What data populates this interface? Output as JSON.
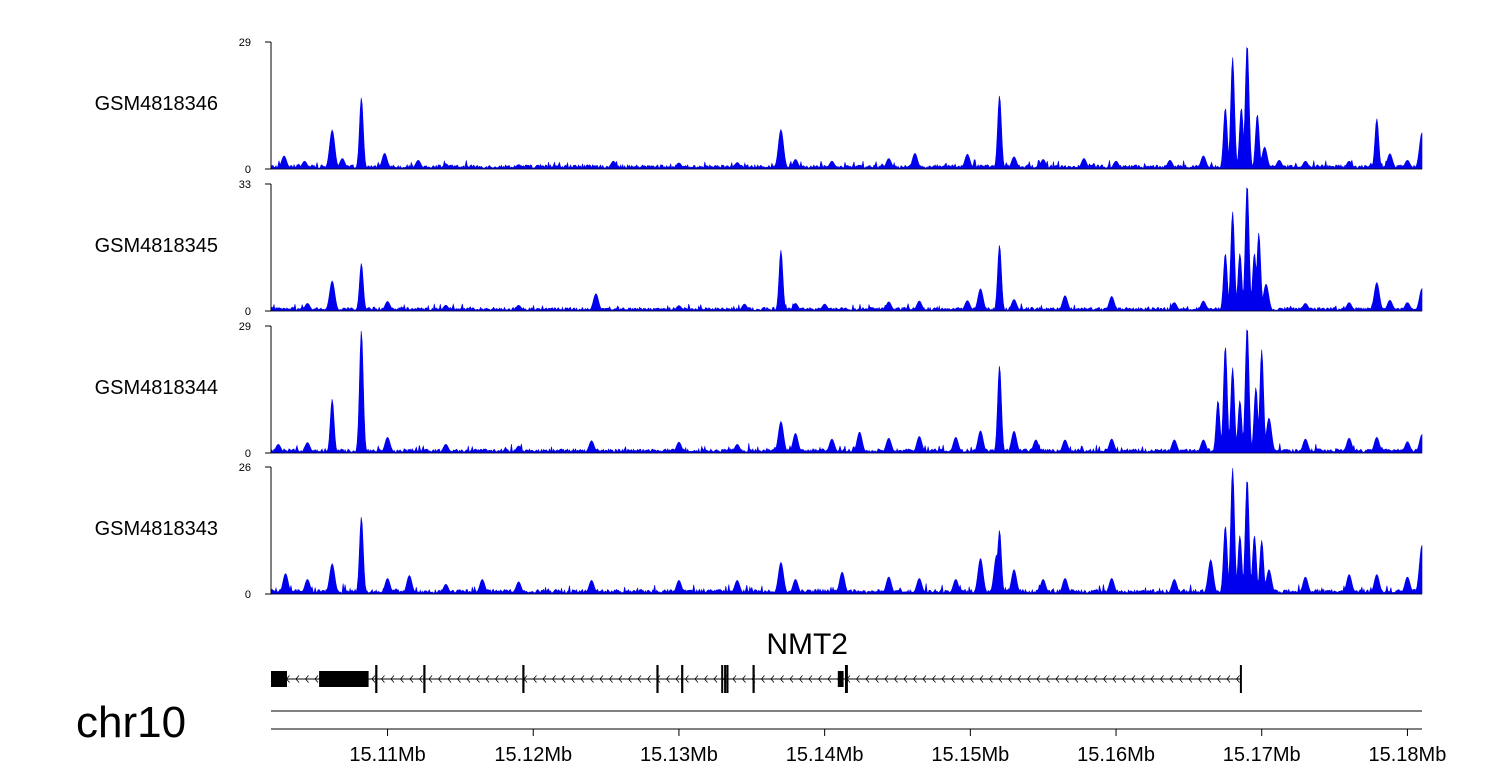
{
  "chart_data": {
    "type": "area",
    "chromosome": "chr10",
    "x_unit": "Mb",
    "xlim": [
      15.102,
      15.181
    ],
    "x_ticks": [
      {
        "value": 15.11,
        "label": "15.11Mb"
      },
      {
        "value": 15.12,
        "label": "15.12Mb"
      },
      {
        "value": 15.13,
        "label": "15.13Mb"
      },
      {
        "value": 15.14,
        "label": "15.14Mb"
      },
      {
        "value": 15.15,
        "label": "15.15Mb"
      },
      {
        "value": 15.16,
        "label": "15.16Mb"
      },
      {
        "value": 15.17,
        "label": "15.17Mb"
      },
      {
        "value": 15.18,
        "label": "15.18Mb"
      }
    ],
    "color": "#0000ee",
    "baseline": 0.6,
    "tracks": [
      {
        "name": "GSM4818346",
        "ylim": [
          0,
          29
        ],
        "ymax_label": "29",
        "ymin_label": "0",
        "peaks": [
          [
            15.1029,
            3.0
          ],
          [
            15.1043,
            1.8
          ],
          [
            15.1062,
            8.9
          ],
          [
            15.1069,
            2.4
          ],
          [
            15.1082,
            16.3
          ],
          [
            15.1098,
            3.6
          ],
          [
            15.1121,
            2.0
          ],
          [
            15.114,
            1.2
          ],
          [
            15.119,
            1.0
          ],
          [
            15.1255,
            1.8
          ],
          [
            15.13,
            1.4
          ],
          [
            15.134,
            1.5
          ],
          [
            15.137,
            9.0
          ],
          [
            15.138,
            2.2
          ],
          [
            15.1405,
            1.8
          ],
          [
            15.1444,
            2.4
          ],
          [
            15.1462,
            3.6
          ],
          [
            15.1498,
            3.4
          ],
          [
            15.152,
            16.8
          ],
          [
            15.153,
            2.8
          ],
          [
            15.155,
            2.2
          ],
          [
            15.1578,
            2.4
          ],
          [
            15.16,
            1.8
          ],
          [
            15.1637,
            2.0
          ],
          [
            15.166,
            3.0
          ],
          [
            15.1675,
            14.0
          ],
          [
            15.168,
            25.5
          ],
          [
            15.1686,
            14.0
          ],
          [
            15.169,
            28.6
          ],
          [
            15.1697,
            12.5
          ],
          [
            15.1702,
            5.0
          ],
          [
            15.1712,
            2.0
          ],
          [
            15.173,
            1.8
          ],
          [
            15.176,
            1.8
          ],
          [
            15.1779,
            11.5
          ],
          [
            15.1788,
            3.5
          ],
          [
            15.18,
            2.0
          ],
          [
            15.181,
            8.3
          ]
        ]
      },
      {
        "name": "GSM4818345",
        "ylim": [
          0,
          33
        ],
        "ymax_label": "33",
        "ymin_label": "0",
        "peaks": [
          [
            15.1045,
            2.0
          ],
          [
            15.1062,
            7.8
          ],
          [
            15.1082,
            12.4
          ],
          [
            15.11,
            2.5
          ],
          [
            15.114,
            1.5
          ],
          [
            15.119,
            1.5
          ],
          [
            15.1243,
            4.5
          ],
          [
            15.13,
            1.4
          ],
          [
            15.1345,
            1.8
          ],
          [
            15.137,
            15.8
          ],
          [
            15.138,
            2.0
          ],
          [
            15.14,
            1.8
          ],
          [
            15.1444,
            2.4
          ],
          [
            15.1465,
            2.6
          ],
          [
            15.1498,
            2.7
          ],
          [
            15.1507,
            5.8
          ],
          [
            15.152,
            17.2
          ],
          [
            15.153,
            3.0
          ],
          [
            15.1565,
            4.0
          ],
          [
            15.1597,
            3.8
          ],
          [
            15.164,
            2.2
          ],
          [
            15.166,
            2.6
          ],
          [
            15.1675,
            15.0
          ],
          [
            15.168,
            25.8
          ],
          [
            15.1685,
            15.0
          ],
          [
            15.169,
            33.0
          ],
          [
            15.1695,
            15.0
          ],
          [
            15.1698,
            20.3
          ],
          [
            15.1703,
            7.0
          ],
          [
            15.173,
            2.0
          ],
          [
            15.176,
            2.2
          ],
          [
            15.1779,
            7.4
          ],
          [
            15.1788,
            2.8
          ],
          [
            15.18,
            2.2
          ],
          [
            15.181,
            5.8
          ]
        ]
      },
      {
        "name": "GSM4818344",
        "ylim": [
          0,
          29
        ],
        "ymax_label": "29",
        "ymin_label": "0",
        "peaks": [
          [
            15.1025,
            2.0
          ],
          [
            15.1045,
            2.4
          ],
          [
            15.1062,
            12.3
          ],
          [
            15.1082,
            28.0
          ],
          [
            15.11,
            3.6
          ],
          [
            15.114,
            2.0
          ],
          [
            15.119,
            1.6
          ],
          [
            15.124,
            2.8
          ],
          [
            15.13,
            2.5
          ],
          [
            15.134,
            2.0
          ],
          [
            15.137,
            7.2
          ],
          [
            15.138,
            4.5
          ],
          [
            15.1405,
            3.2
          ],
          [
            15.1424,
            4.8
          ],
          [
            15.1444,
            3.4
          ],
          [
            15.1465,
            3.8
          ],
          [
            15.149,
            3.6
          ],
          [
            15.1507,
            5.1
          ],
          [
            15.152,
            20.0
          ],
          [
            15.153,
            5.0
          ],
          [
            15.1545,
            3.0
          ],
          [
            15.1565,
            3.0
          ],
          [
            15.1597,
            3.2
          ],
          [
            15.164,
            3.0
          ],
          [
            15.166,
            3.0
          ],
          [
            15.167,
            12.0
          ],
          [
            15.1675,
            24.5
          ],
          [
            15.168,
            19.5
          ],
          [
            15.1685,
            12.0
          ],
          [
            15.169,
            29.0
          ],
          [
            15.1696,
            15.0
          ],
          [
            15.17,
            23.6
          ],
          [
            15.1705,
            8.0
          ],
          [
            15.173,
            3.2
          ],
          [
            15.176,
            3.4
          ],
          [
            15.1779,
            3.6
          ],
          [
            15.18,
            2.6
          ],
          [
            15.181,
            4.2
          ]
        ]
      },
      {
        "name": "GSM4818343",
        "ylim": [
          0,
          26
        ],
        "ymax_label": "26",
        "ymin_label": "0",
        "peaks": [
          [
            15.103,
            4.2
          ],
          [
            15.1045,
            3.0
          ],
          [
            15.1062,
            6.2
          ],
          [
            15.1082,
            15.8
          ],
          [
            15.11,
            3.2
          ],
          [
            15.1115,
            3.8
          ],
          [
            15.114,
            2.0
          ],
          [
            15.1165,
            3.0
          ],
          [
            15.119,
            2.5
          ],
          [
            15.124,
            2.8
          ],
          [
            15.13,
            2.8
          ],
          [
            15.134,
            2.8
          ],
          [
            15.137,
            6.5
          ],
          [
            15.138,
            3.0
          ],
          [
            15.1412,
            4.5
          ],
          [
            15.1444,
            3.5
          ],
          [
            15.1465,
            3.2
          ],
          [
            15.149,
            3.0
          ],
          [
            15.1507,
            7.3
          ],
          [
            15.1518,
            8.0
          ],
          [
            15.152,
            13.1
          ],
          [
            15.153,
            5.0
          ],
          [
            15.155,
            3.0
          ],
          [
            15.1565,
            3.2
          ],
          [
            15.1597,
            3.2
          ],
          [
            15.164,
            3.0
          ],
          [
            15.1665,
            7.0
          ],
          [
            15.1675,
            14.0
          ],
          [
            15.168,
            25.8
          ],
          [
            15.1685,
            12.0
          ],
          [
            15.169,
            23.7
          ],
          [
            15.1695,
            12.0
          ],
          [
            15.17,
            11.0
          ],
          [
            15.1705,
            5.0
          ],
          [
            15.173,
            3.5
          ],
          [
            15.176,
            4.0
          ],
          [
            15.1779,
            4.0
          ],
          [
            15.18,
            3.5
          ],
          [
            15.181,
            10.0
          ]
        ]
      }
    ],
    "gene": {
      "name": "NMT2",
      "strand": "-",
      "start": 15.102,
      "end": 15.1686,
      "exons": [
        [
          15.102,
          15.1031,
          "thick"
        ],
        [
          15.1053,
          15.1087,
          "thick"
        ],
        [
          15.10915,
          15.1093,
          "thin"
        ],
        [
          15.11245,
          15.1126,
          "thin"
        ],
        [
          15.11925,
          15.1194,
          "thin"
        ],
        [
          15.12845,
          15.1286,
          "thin"
        ],
        [
          15.13015,
          15.1303,
          "thin"
        ],
        [
          15.1329,
          15.133,
          "thin"
        ],
        [
          15.1331,
          15.1332,
          "thin"
        ],
        [
          15.13325,
          15.1334,
          "thin"
        ],
        [
          15.13505,
          15.1352,
          "thin"
        ],
        [
          15.1409,
          15.1413,
          "thick"
        ],
        [
          15.1414,
          15.1416,
          "thin"
        ],
        [
          15.1685,
          15.1686,
          "thin"
        ]
      ]
    }
  }
}
